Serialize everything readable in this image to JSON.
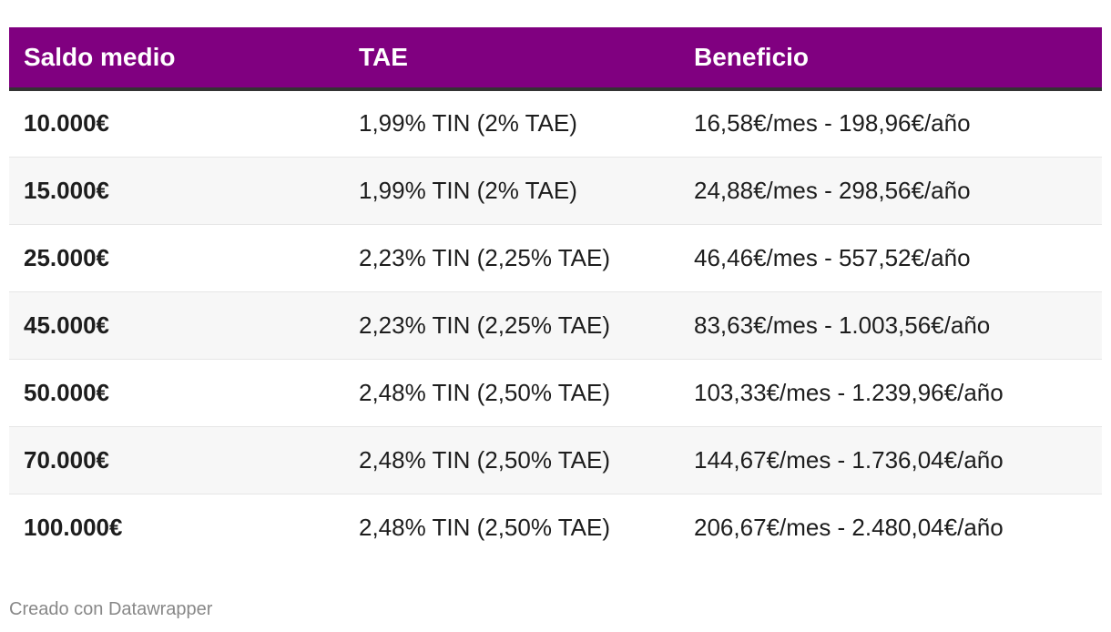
{
  "chart_data": {
    "type": "table",
    "columns": [
      "Saldo medio",
      "TAE",
      "Beneficio"
    ],
    "rows": [
      [
        "10.000€",
        "1,99% TIN (2% TAE)",
        "16,58€/mes - 198,96€/año"
      ],
      [
        "15.000€",
        "1,99% TIN (2% TAE)",
        "24,88€/mes - 298,56€/año"
      ],
      [
        "25.000€",
        "2,23% TIN (2,25% TAE)",
        "46,46€/mes - 557,52€/año"
      ],
      [
        "45.000€",
        "2,23% TIN (2,25% TAE)",
        "83,63€/mes - 1.003,56€/año"
      ],
      [
        "50.000€",
        "2,48% TIN (2,50% TAE)",
        "103,33€/mes - 1.239,96€/año"
      ],
      [
        "70.000€",
        "2,48% TIN (2,50% TAE)",
        "144,67€/mes - 1.736,04€/año"
      ],
      [
        "100.000€",
        "2,48% TIN (2,50% TAE)",
        "206,67€/mes - 2.480,04€/año"
      ]
    ],
    "header_color": "#800080",
    "header_border_color": "#333333",
    "stripe_color": "#f7f7f7"
  },
  "footer": {
    "credit": "Creado con Datawrapper"
  }
}
